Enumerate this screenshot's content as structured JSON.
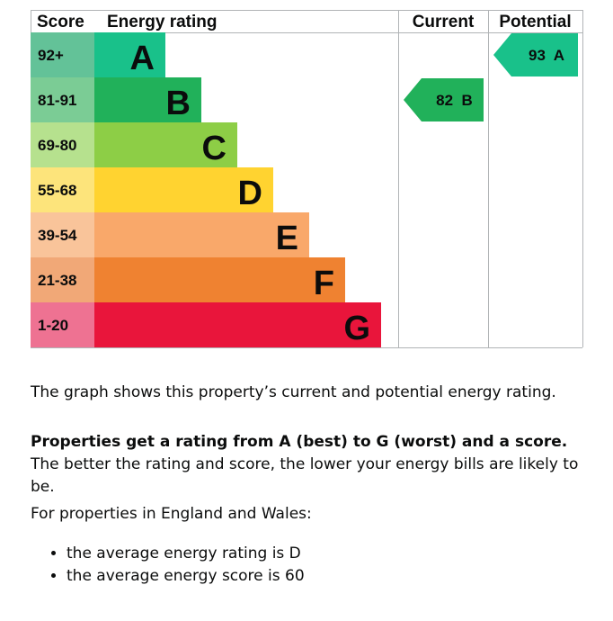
{
  "chart_data": {
    "type": "bar",
    "headers": {
      "score": "Score",
      "energy_rating": "Energy rating",
      "current": "Current",
      "potential": "Potential"
    },
    "bands": [
      {
        "letter": "A",
        "range": "92+",
        "bar_color": "#19c18a",
        "score_color": "#63c298"
      },
      {
        "letter": "B",
        "range": "81-91",
        "bar_color": "#21b15a",
        "score_color": "#7bcc95"
      },
      {
        "letter": "C",
        "range": "69-80",
        "bar_color": "#8dce46",
        "score_color": "#b6e18e"
      },
      {
        "letter": "D",
        "range": "55-68",
        "bar_color": "#ffd330",
        "score_color": "#fde47b"
      },
      {
        "letter": "E",
        "range": "39-54",
        "bar_color": "#f9a86a",
        "score_color": "#f9c49a"
      },
      {
        "letter": "F",
        "range": "21-38",
        "bar_color": "#ef8231",
        "score_color": "#f1a877"
      },
      {
        "letter": "G",
        "range": "1-20",
        "bar_color": "#e9153b",
        "score_color": "#ee7292"
      }
    ],
    "current": {
      "score": 82,
      "band": "B",
      "label": "82  B",
      "color": "#21b15a"
    },
    "potential": {
      "score": 93,
      "band": "A",
      "label": "93  A",
      "color": "#19c18a"
    }
  },
  "text": {
    "intro": "The graph shows this property’s current and potential energy rating.",
    "ratings_bold": "Properties get a rating from A (best) to G (worst) and a score.",
    "ratings_rest": " The better the rating and score, the lower your energy bills are likely to be.",
    "region": "For properties in England and Wales:",
    "averages": [
      "the average energy rating is D",
      "the average energy score is 60"
    ]
  }
}
